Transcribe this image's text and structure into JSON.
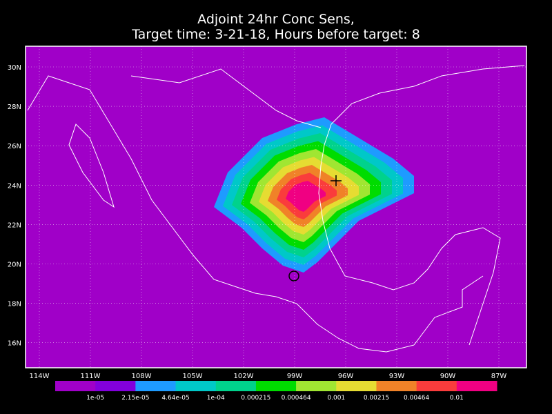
{
  "title": [
    "Adjoint 24hr Conc Sens,",
    "Target time: 3-21-18, Hours before target: 8"
  ],
  "lat_labels": [
    "30N",
    "28N",
    "26N",
    "24N",
    "22N",
    "20N",
    "18N",
    "16N"
  ],
  "lon_labels": [
    "114W",
    "111W",
    "108W",
    "105W",
    "102W",
    "99W",
    "96W",
    "93W",
    "90W",
    "87W"
  ],
  "colorbar": {
    "colors": [
      "#a000c8",
      "#8200dc",
      "#1e9bff",
      "#00c8c8",
      "#00d28c",
      "#00dc00",
      "#a0e632",
      "#e6dc32",
      "#f08228",
      "#fa3c3c",
      "#f00082"
    ],
    "labels": [
      "1e-05",
      "2.15e-05",
      "4.64e-05",
      "1e-04",
      "0.000215",
      "0.000464",
      "0.001",
      "0.00215",
      "0.00464",
      "0.01"
    ]
  }
}
